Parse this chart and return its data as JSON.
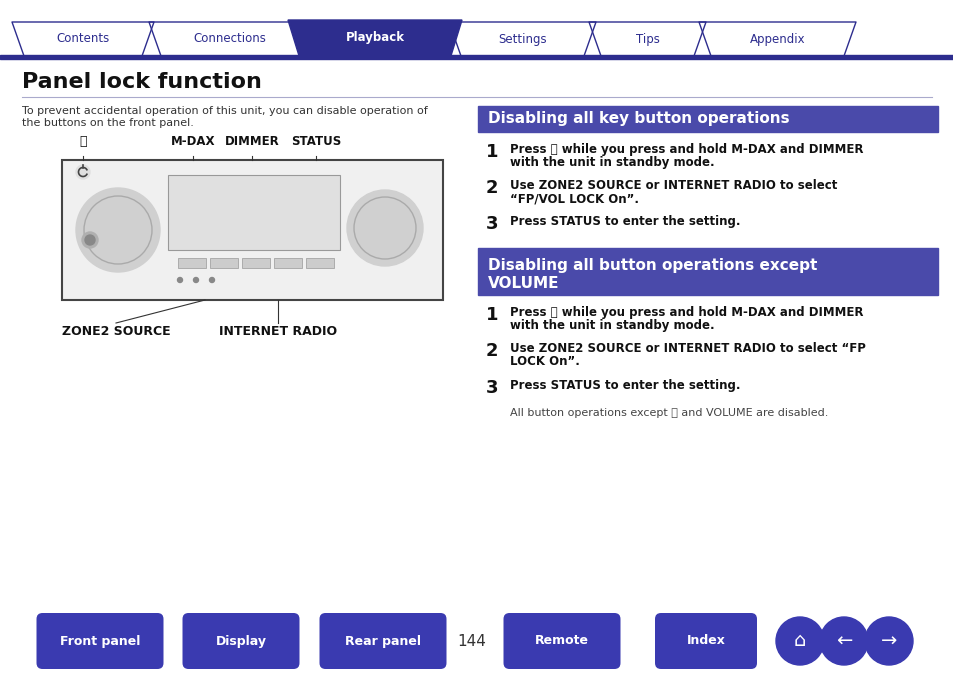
{
  "title": "Panel lock function",
  "bg_color": "#ffffff",
  "tab_bar_color": "#2d2d8e",
  "tab_active_color": "#2d2d8e",
  "tabs": [
    "Contents",
    "Connections",
    "Playback",
    "Settings",
    "Tips",
    "Appendix"
  ],
  "active_tab": 2,
  "intro_text1": "To prevent accidental operation of this unit, you can disable operation of",
  "intro_text2": "the buttons on the front panel.",
  "section1_title": "Disabling all key button operations",
  "section1_bg": "#4a4aaa",
  "section1_steps": [
    {
      "num": "1",
      "line1": "Press ⏻ while you press and hold M-DAX and DIMMER",
      "line2": "with the unit in standby mode."
    },
    {
      "num": "2",
      "line1": "Use ZONE2 SOURCE or INTERNET RADIO to select",
      "line2": "“FP/VOL LOCK On”."
    },
    {
      "num": "3",
      "line1": "Press STATUS to enter the setting.",
      "line2": ""
    }
  ],
  "section2_title1": "Disabling all button operations except",
  "section2_title2": "VOLUME",
  "section2_bg": "#4a4aaa",
  "section2_steps": [
    {
      "num": "1",
      "line1": "Press ⏻ while you press and hold M-DAX and DIMMER",
      "line2": "with the unit in standby mode."
    },
    {
      "num": "2",
      "line1": "Use ZONE2 SOURCE or INTERNET RADIO to select “FP",
      "line2": "LOCK On”."
    },
    {
      "num": "3",
      "line1": "Press STATUS to enter the setting.",
      "line2": ""
    }
  ],
  "section2_note": "All button operations except ⏻ and VOLUME are disabled.",
  "page_number": "144",
  "bottom_buttons": [
    "Front panel",
    "Display",
    "Rear panel",
    "Remote",
    "Index"
  ],
  "bottom_button_color": "#3a3ab0"
}
